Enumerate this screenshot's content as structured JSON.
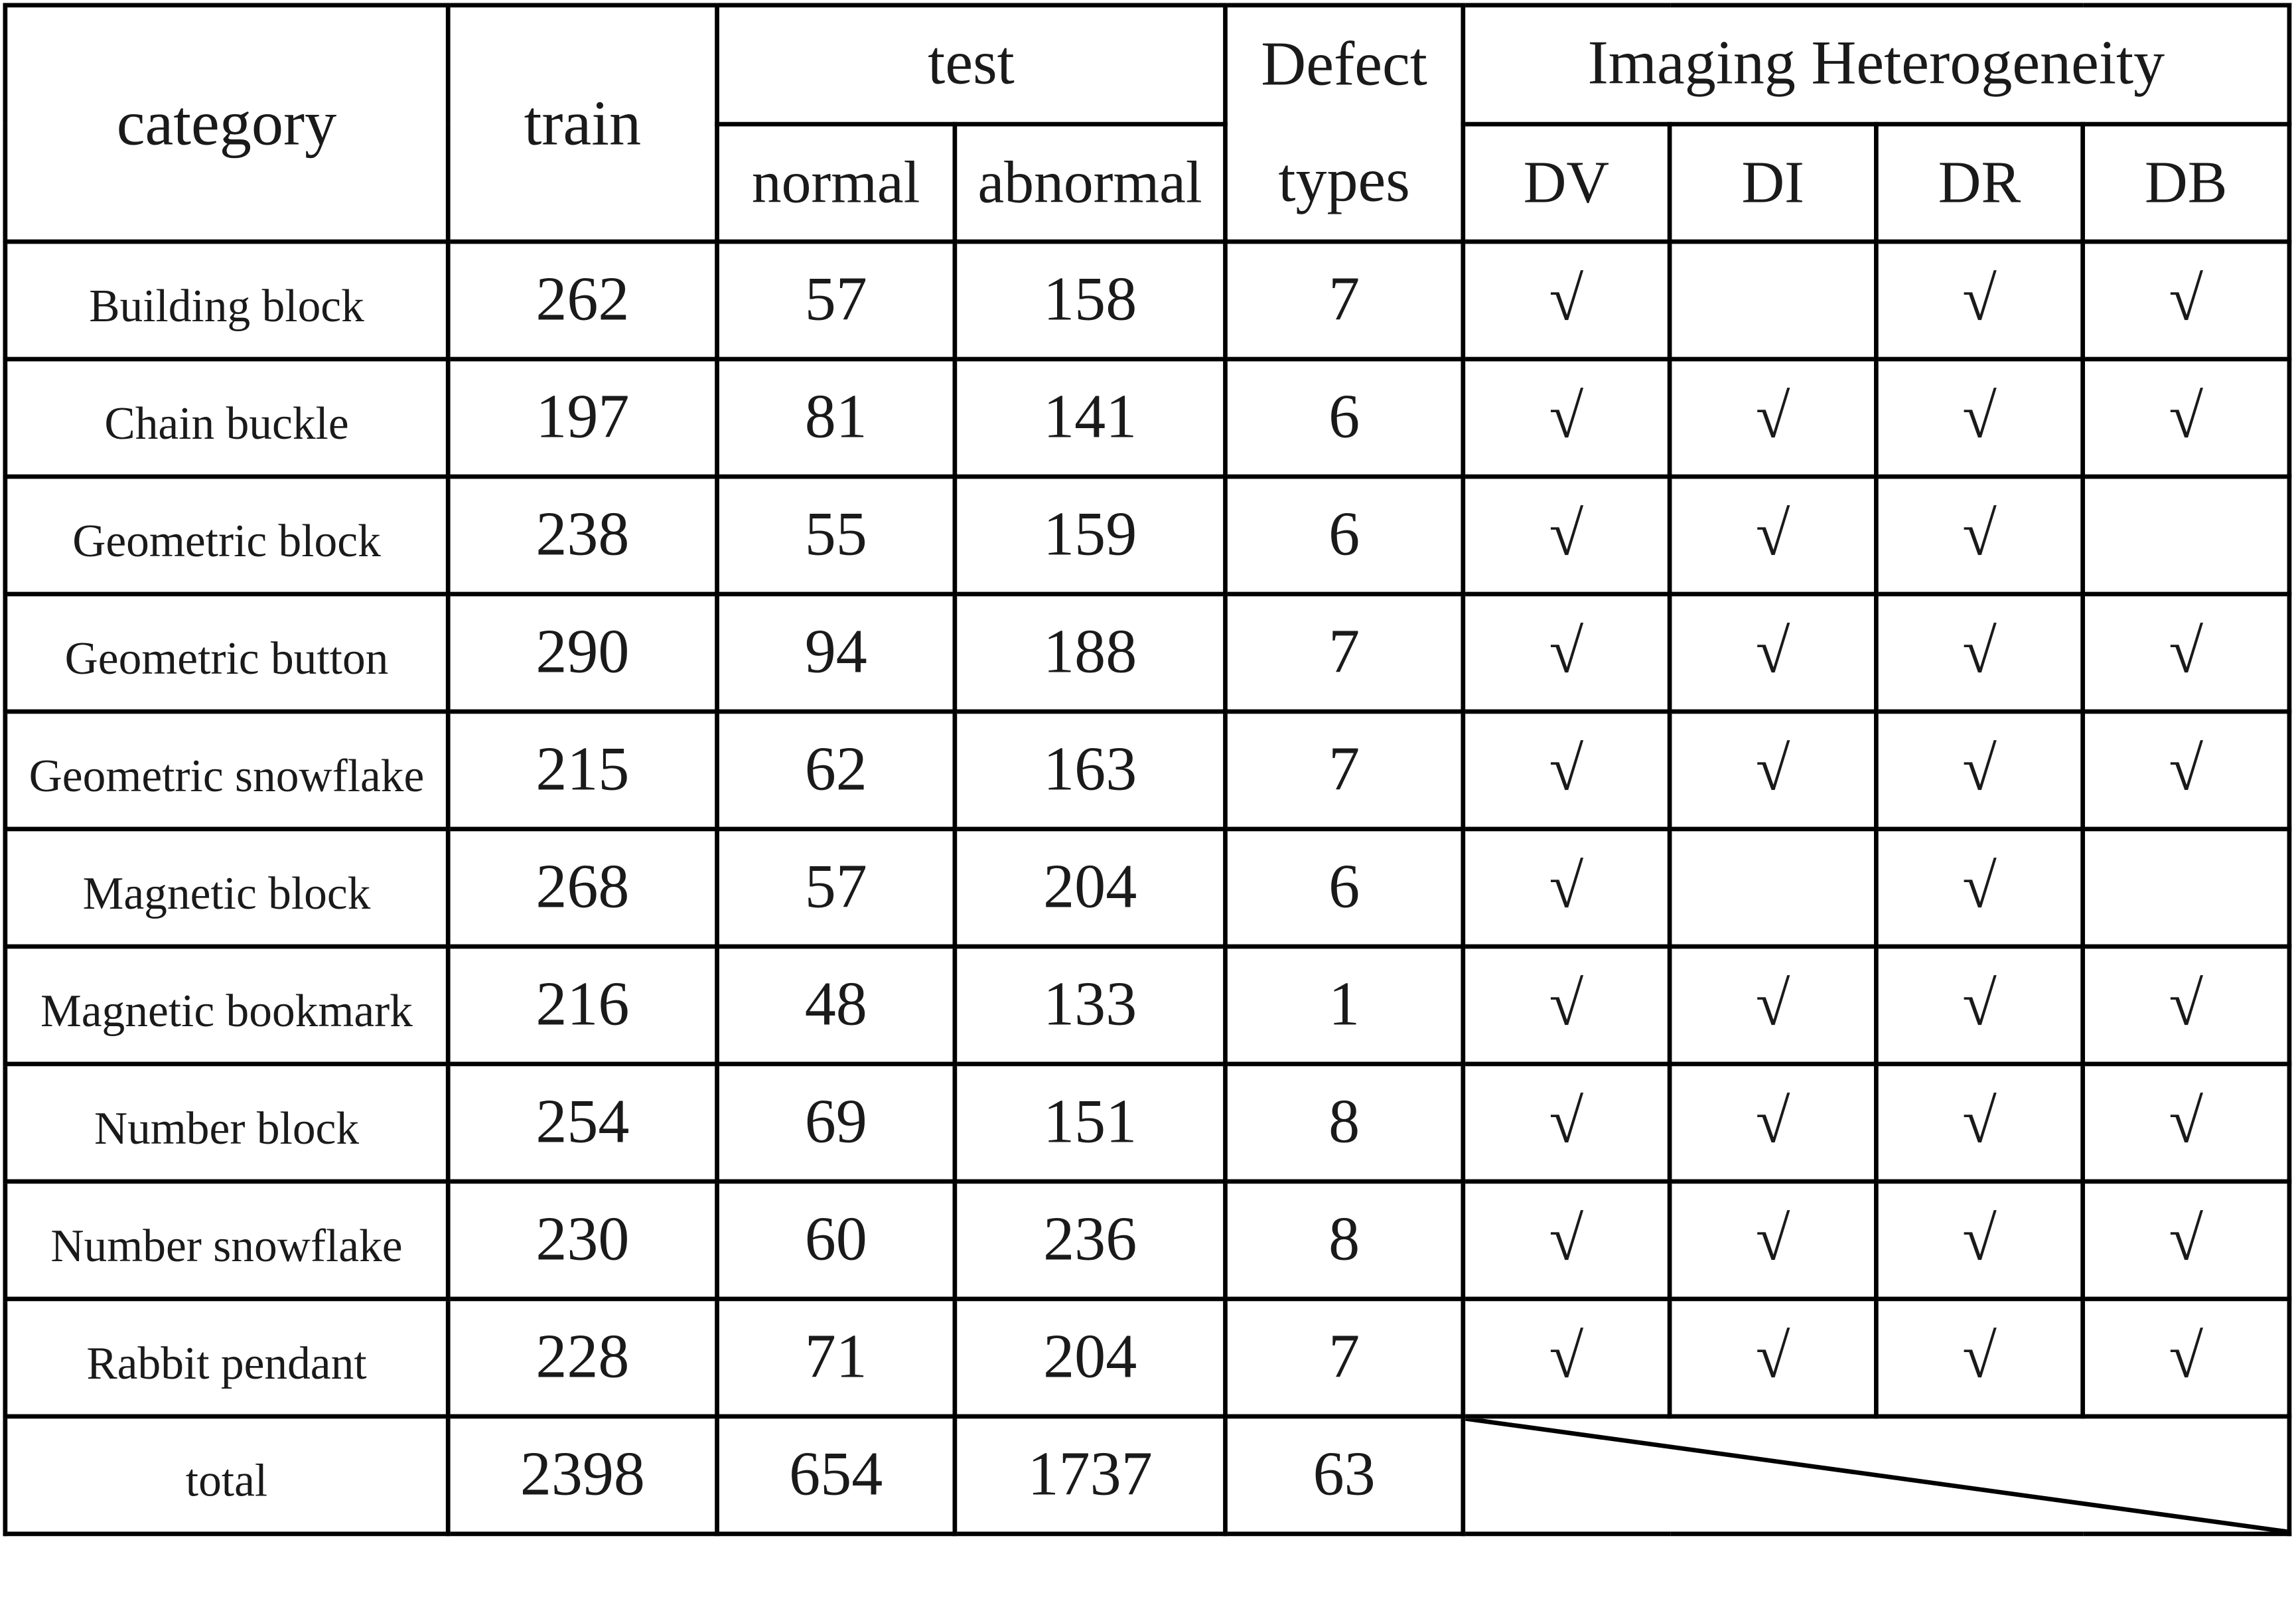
{
  "headers": {
    "category": "category",
    "train": "train",
    "test": "test",
    "normal": "normal",
    "abnormal": "abnormal",
    "defect_line1": "Defect",
    "defect_line2": "types",
    "imaging": "Imaging Heterogeneity",
    "dv": "DV",
    "di": "DI",
    "dr": "DR",
    "db": "DB"
  },
  "rows": [
    {
      "category": "Building block",
      "train": "262",
      "normal": "57",
      "abnormal": "158",
      "defect_types": "7",
      "dv": "√",
      "di": "",
      "dr": "√",
      "db": "√"
    },
    {
      "category": "Chain buckle",
      "train": "197",
      "normal": "81",
      "abnormal": "141",
      "defect_types": "6",
      "dv": "√",
      "di": "√",
      "dr": "√",
      "db": "√"
    },
    {
      "category": "Geometric block",
      "train": "238",
      "normal": "55",
      "abnormal": "159",
      "defect_types": "6",
      "dv": "√",
      "di": "√",
      "dr": "√",
      "db": ""
    },
    {
      "category": "Geometric button",
      "train": "290",
      "normal": "94",
      "abnormal": "188",
      "defect_types": "7",
      "dv": "√",
      "di": "√",
      "dr": "√",
      "db": "√"
    },
    {
      "category": "Geometric snowflake",
      "train": "215",
      "normal": "62",
      "abnormal": "163",
      "defect_types": "7",
      "dv": "√",
      "di": "√",
      "dr": "√",
      "db": "√"
    },
    {
      "category": "Magnetic block",
      "train": "268",
      "normal": "57",
      "abnormal": "204",
      "defect_types": "6",
      "dv": "√",
      "di": "",
      "dr": "√",
      "db": ""
    },
    {
      "category": "Magnetic bookmark",
      "train": "216",
      "normal": "48",
      "abnormal": "133",
      "defect_types": "1",
      "dv": "√",
      "di": "√",
      "dr": "√",
      "db": "√"
    },
    {
      "category": "Number block",
      "train": "254",
      "normal": "69",
      "abnormal": "151",
      "defect_types": "8",
      "dv": "√",
      "di": "√",
      "dr": "√",
      "db": "√"
    },
    {
      "category": "Number snowflake",
      "train": "230",
      "normal": "60",
      "abnormal": "236",
      "defect_types": "8",
      "dv": "√",
      "di": "√",
      "dr": "√",
      "db": "√"
    },
    {
      "category": "Rabbit pendant",
      "train": "228",
      "normal": "71",
      "abnormal": "204",
      "defect_types": "7",
      "dv": "√",
      "di": "√",
      "dr": "√",
      "db": "√"
    }
  ],
  "total": {
    "category": "total",
    "train": "2398",
    "normal": "654",
    "abnormal": "1737",
    "defect_types": "63"
  }
}
